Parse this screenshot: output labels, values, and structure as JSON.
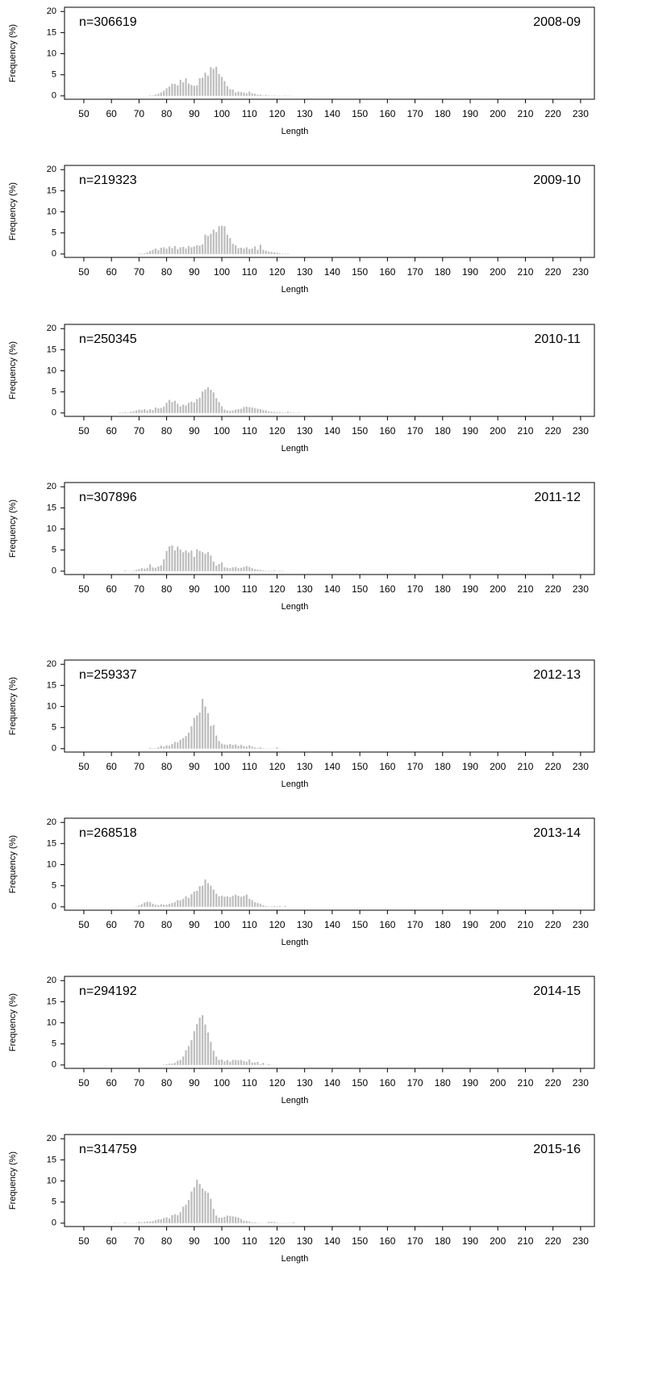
{
  "chart_data": [
    {
      "type": "bar",
      "n_label": "n=306619",
      "season_label": "2008-09",
      "x_label": "Length",
      "y_label": "Frequency (%)",
      "color": "#bdbdbd",
      "xlim": [
        43,
        235
      ],
      "ylim": [
        -0.8,
        21
      ],
      "xticks": [
        50,
        60,
        70,
        80,
        90,
        100,
        110,
        120,
        130,
        140,
        150,
        160,
        170,
        180,
        190,
        200,
        210,
        220,
        230
      ],
      "yticks": [
        0,
        5,
        10,
        15,
        20
      ],
      "x": [
        74,
        75,
        76,
        77,
        78,
        79,
        80,
        81,
        82,
        83,
        84,
        85,
        86,
        87,
        88,
        89,
        90,
        91,
        92,
        93,
        94,
        95,
        96,
        97,
        98,
        99,
        100,
        101,
        102,
        103,
        104,
        105,
        106,
        107,
        108,
        109,
        110,
        111,
        112,
        113,
        114,
        115,
        116,
        117,
        118,
        119,
        120,
        121,
        122,
        123,
        124,
        125
      ],
      "values": [
        0.1,
        0.1,
        0.3,
        0.5,
        0.8,
        1.2,
        1.8,
        2.2,
        2.9,
        2.8,
        2.5,
        3.8,
        3.2,
        4.2,
        2.9,
        2.6,
        2.4,
        2.5,
        4.2,
        4.3,
        5.5,
        4.8,
        6.8,
        6.4,
        6.9,
        5.2,
        4.5,
        3.5,
        2.3,
        1.6,
        1.5,
        0.8,
        1.0,
        0.9,
        0.8,
        0.6,
        1.0,
        0.6,
        0.5,
        0.3,
        0.3,
        0.1,
        0.2,
        0.1,
        0.05,
        0.1,
        0.05,
        0.05,
        0.05,
        0.1,
        0.05,
        0.05
      ]
    },
    {
      "type": "bar",
      "n_label": "n=219323",
      "season_label": "2009-10",
      "x_label": "Length",
      "y_label": "Frequency (%)",
      "color": "#bdbdbd",
      "xlim": [
        43,
        235
      ],
      "ylim": [
        -0.8,
        21
      ],
      "xticks": [
        50,
        60,
        70,
        80,
        90,
        100,
        110,
        120,
        130,
        140,
        150,
        160,
        170,
        180,
        190,
        200,
        210,
        220,
        230
      ],
      "yticks": [
        0,
        5,
        10,
        15,
        20
      ],
      "x": [
        70,
        71,
        72,
        73,
        74,
        75,
        76,
        77,
        78,
        79,
        80,
        81,
        82,
        83,
        84,
        85,
        86,
        87,
        88,
        89,
        90,
        91,
        92,
        93,
        94,
        95,
        96,
        97,
        98,
        99,
        100,
        101,
        102,
        103,
        104,
        105,
        106,
        107,
        108,
        109,
        110,
        111,
        112,
        113,
        114,
        115,
        116,
        117,
        118,
        119,
        120,
        121,
        122,
        123,
        124
      ],
      "values": [
        0.1,
        0.1,
        0.2,
        0.4,
        0.7,
        1.0,
        1.3,
        0.9,
        1.5,
        1.6,
        1.3,
        1.8,
        1.4,
        1.9,
        1.2,
        1.6,
        1.7,
        1.3,
        1.9,
        1.6,
        1.8,
        2.1,
        2.0,
        2.3,
        4.6,
        4.3,
        4.8,
        5.8,
        5.2,
        6.6,
        6.7,
        6.6,
        4.6,
        3.8,
        2.4,
        2.1,
        1.4,
        1.5,
        1.3,
        1.6,
        1.2,
        1.3,
        1.8,
        1.0,
        2.2,
        1.0,
        0.8,
        0.6,
        0.5,
        0.4,
        0.3,
        0.2,
        0.1,
        0.1,
        0.1
      ]
    },
    {
      "type": "bar",
      "n_label": "n=250345",
      "season_label": "2010-11",
      "x_label": "Length",
      "y_label": "Frequency (%)",
      "color": "#bdbdbd",
      "xlim": [
        43,
        235
      ],
      "ylim": [
        -0.8,
        21
      ],
      "xticks": [
        50,
        60,
        70,
        80,
        90,
        100,
        110,
        120,
        130,
        140,
        150,
        160,
        170,
        180,
        190,
        200,
        210,
        220,
        230
      ],
      "yticks": [
        0,
        5,
        10,
        15,
        20
      ],
      "x": [
        63,
        64,
        65,
        66,
        67,
        68,
        69,
        70,
        71,
        72,
        73,
        74,
        75,
        76,
        77,
        78,
        79,
        80,
        81,
        82,
        83,
        84,
        85,
        86,
        87,
        88,
        89,
        90,
        91,
        92,
        93,
        94,
        95,
        96,
        97,
        98,
        99,
        100,
        101,
        102,
        103,
        104,
        105,
        106,
        107,
        108,
        109,
        110,
        111,
        112,
        113,
        114,
        115,
        116,
        117,
        118,
        119,
        120,
        121,
        122,
        123,
        124,
        125,
        126,
        127,
        128
      ],
      "values": [
        0.1,
        0.1,
        0.2,
        0.1,
        0.3,
        0.4,
        0.6,
        0.8,
        0.7,
        0.9,
        0.6,
        0.9,
        0.7,
        1.3,
        1.1,
        1.2,
        1.5,
        2.4,
        3.1,
        2.6,
        2.9,
        2.2,
        1.6,
        2.0,
        1.8,
        2.4,
        2.7,
        2.5,
        3.3,
        3.6,
        5.1,
        5.6,
        6.1,
        5.5,
        4.9,
        3.5,
        2.6,
        1.6,
        0.8,
        0.6,
        0.5,
        0.6,
        0.8,
        0.9,
        1.0,
        1.4,
        1.5,
        1.4,
        1.3,
        1.1,
        1.0,
        0.9,
        0.7,
        0.6,
        0.4,
        0.3,
        0.3,
        0.2,
        0.2,
        0.1,
        0.1,
        0.3,
        0.1,
        0.1,
        0.05,
        0.1
      ]
    },
    {
      "type": "bar",
      "n_label": "n=307896",
      "season_label": "2011-12",
      "x_label": "Length",
      "y_label": "Frequency (%)",
      "color": "#bdbdbd",
      "xlim": [
        43,
        235
      ],
      "ylim": [
        -0.8,
        21
      ],
      "xticks": [
        50,
        60,
        70,
        80,
        90,
        100,
        110,
        120,
        130,
        140,
        150,
        160,
        170,
        180,
        190,
        200,
        210,
        220,
        230
      ],
      "yticks": [
        0,
        5,
        10,
        15,
        20
      ],
      "x": [
        65,
        66,
        67,
        68,
        69,
        70,
        71,
        72,
        73,
        74,
        75,
        76,
        77,
        78,
        79,
        80,
        81,
        82,
        83,
        84,
        85,
        86,
        87,
        88,
        89,
        90,
        91,
        92,
        93,
        94,
        95,
        96,
        97,
        98,
        99,
        100,
        101,
        102,
        103,
        104,
        105,
        106,
        107,
        108,
        109,
        110,
        111,
        112,
        113,
        114,
        115,
        116,
        117,
        118,
        119,
        120,
        121,
        122
      ],
      "values": [
        0.2,
        0.05,
        0.05,
        0.1,
        0.3,
        0.5,
        0.7,
        0.6,
        0.8,
        1.6,
        0.9,
        0.8,
        1.1,
        1.4,
        2.8,
        4.8,
        5.9,
        6.1,
        4.9,
        5.8,
        5.1,
        4.5,
        4.9,
        4.4,
        4.9,
        3.4,
        5.2,
        4.8,
        4.5,
        4.1,
        4.5,
        3.7,
        2.3,
        1.3,
        1.7,
        2.1,
        0.9,
        0.8,
        0.7,
        0.9,
        1.0,
        0.7,
        0.8,
        1.0,
        1.2,
        1.0,
        0.7,
        0.5,
        0.4,
        0.3,
        0.2,
        0.1,
        0.1,
        0.1,
        0.2,
        0.05,
        0.1,
        0.1
      ]
    },
    {
      "type": "bar",
      "n_label": "n=259337",
      "season_label": "2012-13",
      "x_label": "Length",
      "y_label": "Frequency (%)",
      "color": "#bdbdbd",
      "xlim": [
        43,
        235
      ],
      "ylim": [
        -0.8,
        21
      ],
      "xticks": [
        50,
        60,
        70,
        80,
        90,
        100,
        110,
        120,
        130,
        140,
        150,
        160,
        170,
        180,
        190,
        200,
        210,
        220,
        230
      ],
      "yticks": [
        0,
        5,
        10,
        15,
        20
      ],
      "x": [
        74,
        75,
        76,
        77,
        78,
        79,
        80,
        81,
        82,
        83,
        84,
        85,
        86,
        87,
        88,
        89,
        90,
        91,
        92,
        93,
        94,
        95,
        96,
        97,
        98,
        99,
        100,
        101,
        102,
        103,
        104,
        105,
        106,
        107,
        108,
        109,
        110,
        111,
        112,
        113,
        114,
        115,
        116,
        117,
        118,
        119,
        120,
        121
      ],
      "values": [
        0.2,
        0.1,
        0.1,
        0.3,
        0.7,
        0.5,
        0.8,
        0.7,
        1.1,
        1.6,
        1.5,
        2.1,
        2.5,
        3.0,
        3.8,
        5.3,
        7.3,
        7.9,
        8.6,
        11.8,
        10.0,
        8.4,
        5.4,
        5.6,
        3.1,
        1.8,
        1.2,
        1.0,
        0.9,
        1.1,
        0.9,
        1.0,
        0.7,
        0.9,
        0.6,
        0.5,
        0.8,
        0.5,
        0.3,
        0.2,
        0.3,
        0.1,
        0.05,
        0.05,
        0.05,
        0.05,
        0.3,
        0.05
      ]
    },
    {
      "type": "bar",
      "n_label": "n=268518",
      "season_label": "2013-14",
      "x_label": "Length",
      "y_label": "Frequency (%)",
      "color": "#bdbdbd",
      "xlim": [
        43,
        235
      ],
      "ylim": [
        -0.8,
        21
      ],
      "xticks": [
        50,
        60,
        70,
        80,
        90,
        100,
        110,
        120,
        130,
        140,
        150,
        160,
        170,
        180,
        190,
        200,
        210,
        220,
        230
      ],
      "yticks": [
        0,
        5,
        10,
        15,
        20
      ],
      "x": [
        69,
        70,
        71,
        72,
        73,
        74,
        75,
        76,
        77,
        78,
        79,
        80,
        81,
        82,
        83,
        84,
        85,
        86,
        87,
        88,
        89,
        90,
        91,
        92,
        93,
        94,
        95,
        96,
        97,
        98,
        99,
        100,
        101,
        102,
        103,
        104,
        105,
        106,
        107,
        108,
        109,
        110,
        111,
        112,
        113,
        114,
        115,
        116,
        117,
        118,
        119,
        120,
        121,
        122,
        123
      ],
      "values": [
        0.1,
        0.3,
        0.6,
        1.0,
        1.2,
        1.1,
        0.7,
        0.5,
        0.4,
        0.6,
        0.5,
        0.5,
        0.7,
        0.9,
        1.1,
        1.6,
        1.5,
        1.9,
        2.5,
        2.1,
        3.0,
        3.6,
        3.8,
        4.9,
        5.0,
        6.5,
        5.6,
        5.0,
        4.1,
        3.1,
        2.5,
        2.6,
        2.4,
        2.5,
        2.3,
        2.6,
        2.9,
        2.6,
        2.4,
        2.6,
        2.9,
        1.9,
        1.6,
        1.1,
        0.9,
        0.7,
        0.4,
        0.2,
        0.1,
        0.1,
        0.2,
        0.1,
        0.2,
        0.05,
        0.2
      ]
    },
    {
      "type": "bar",
      "n_label": "n=294192",
      "season_label": "2014-15",
      "x_label": "Length",
      "y_label": "Frequency (%)",
      "color": "#bdbdbd",
      "xlim": [
        43,
        235
      ],
      "ylim": [
        -0.8,
        21
      ],
      "xticks": [
        50,
        60,
        70,
        80,
        90,
        100,
        110,
        120,
        130,
        140,
        150,
        160,
        170,
        180,
        190,
        200,
        210,
        220,
        230
      ],
      "yticks": [
        0,
        5,
        10,
        15,
        20
      ],
      "x": [
        79,
        80,
        81,
        82,
        83,
        84,
        85,
        86,
        87,
        88,
        89,
        90,
        91,
        92,
        93,
        94,
        95,
        96,
        97,
        98,
        99,
        100,
        101,
        102,
        103,
        104,
        105,
        106,
        107,
        108,
        109,
        110,
        111,
        112,
        113,
        114,
        115,
        116,
        117,
        118
      ],
      "values": [
        0.1,
        0.2,
        0.3,
        0.3,
        0.5,
        1.0,
        1.2,
        2.0,
        3.5,
        4.5,
        5.9,
        8.0,
        9.7,
        11.2,
        11.8,
        9.6,
        7.7,
        5.5,
        3.4,
        2.0,
        1.2,
        1.3,
        0.9,
        1.2,
        0.8,
        1.2,
        1.2,
        1.1,
        1.2,
        0.9,
        0.8,
        1.3,
        0.6,
        0.6,
        0.7,
        0.2,
        0.5,
        0.05,
        0.2,
        0.05
      ]
    },
    {
      "type": "bar",
      "n_label": "n=314759",
      "season_label": "2015-16",
      "x_label": "Length",
      "y_label": "Frequency (%)",
      "color": "#bdbdbd",
      "xlim": [
        43,
        235
      ],
      "ylim": [
        -0.8,
        21
      ],
      "xticks": [
        50,
        60,
        70,
        80,
        90,
        100,
        110,
        120,
        130,
        140,
        150,
        160,
        170,
        180,
        190,
        200,
        210,
        220,
        230
      ],
      "yticks": [
        0,
        5,
        10,
        15,
        20
      ],
      "x": [
        61,
        62,
        63,
        64,
        65,
        66,
        67,
        68,
        69,
        70,
        71,
        72,
        73,
        74,
        75,
        76,
        77,
        78,
        79,
        80,
        81,
        82,
        83,
        84,
        85,
        86,
        87,
        88,
        89,
        90,
        91,
        92,
        93,
        94,
        95,
        96,
        97,
        98,
        99,
        100,
        101,
        102,
        103,
        104,
        105,
        106,
        107,
        108,
        109,
        110,
        111,
        112,
        113,
        114,
        115,
        116,
        117,
        118,
        119,
        120,
        121,
        122,
        123,
        124,
        125,
        126
      ],
      "values": [
        0.1,
        0.05,
        0.05,
        0.05,
        0.2,
        0.05,
        0.05,
        0.05,
        0.1,
        0.3,
        0.2,
        0.3,
        0.4,
        0.4,
        0.5,
        0.7,
        0.9,
        0.9,
        1.2,
        1.4,
        1.1,
        1.9,
        2.1,
        1.9,
        2.6,
        3.9,
        4.4,
        5.5,
        7.5,
        8.5,
        10.3,
        9.3,
        8.2,
        7.6,
        7.2,
        5.8,
        3.4,
        1.8,
        1.3,
        1.3,
        1.5,
        1.8,
        1.7,
        1.6,
        1.5,
        1.3,
        1.0,
        0.6,
        0.5,
        0.4,
        0.2,
        0.2,
        0.1,
        0.05,
        0.05,
        0.05,
        0.3,
        0.3,
        0.3,
        0.1,
        0.05,
        0.05,
        0.05,
        0.05,
        0.05,
        0.2
      ]
    }
  ]
}
